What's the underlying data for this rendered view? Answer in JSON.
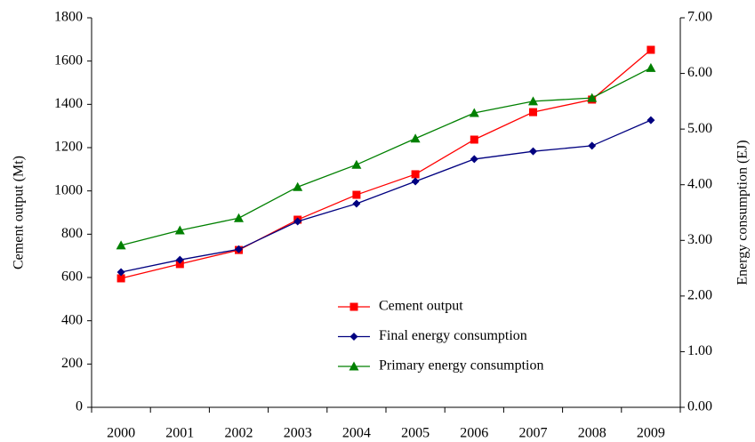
{
  "chart_data": {
    "type": "line",
    "categories": [
      "2000",
      "2001",
      "2002",
      "2003",
      "2004",
      "2005",
      "2006",
      "2007",
      "2008",
      "2009"
    ],
    "y_label": "Cement output (Mt)",
    "y2_label": "Energy consumption (EJ)",
    "ylim": [
      0,
      1800
    ],
    "yticks": [
      0,
      200,
      400,
      600,
      800,
      1000,
      1200,
      1400,
      1600,
      1800
    ],
    "y2lim": [
      0,
      7
    ],
    "y2ticks": [
      {
        "value": 0,
        "label": "0.00"
      },
      {
        "value": 1,
        "label": "1.00"
      },
      {
        "value": 2,
        "label": "2.00"
      },
      {
        "value": 3,
        "label": "3.00"
      },
      {
        "value": 4,
        "label": "4.00"
      },
      {
        "value": 5,
        "label": "5.00"
      },
      {
        "value": 6,
        "label": "6.00"
      },
      {
        "value": 7,
        "label": "7.00"
      }
    ],
    "grid": false,
    "series": [
      {
        "name": "Cement output",
        "color": "#ff0000",
        "marker": "square",
        "values": [
          596,
          662,
          727,
          867,
          982,
          1077,
          1237,
          1364,
          1422,
          1652
        ]
      },
      {
        "name": "Final energy consumption",
        "color": "#000080",
        "marker": "diamond",
        "axis": "y2",
        "values": [
          2.43,
          2.65,
          2.84,
          3.34,
          3.66,
          4.06,
          4.46,
          4.6,
          4.7,
          5.16
        ]
      },
      {
        "name": "Primary energy consumption",
        "color": "#008000",
        "marker": "triangle",
        "axis": "y2",
        "values": [
          2.91,
          3.18,
          3.4,
          3.96,
          4.36,
          4.83,
          5.29,
          5.5,
          5.56,
          6.1
        ]
      }
    ]
  }
}
